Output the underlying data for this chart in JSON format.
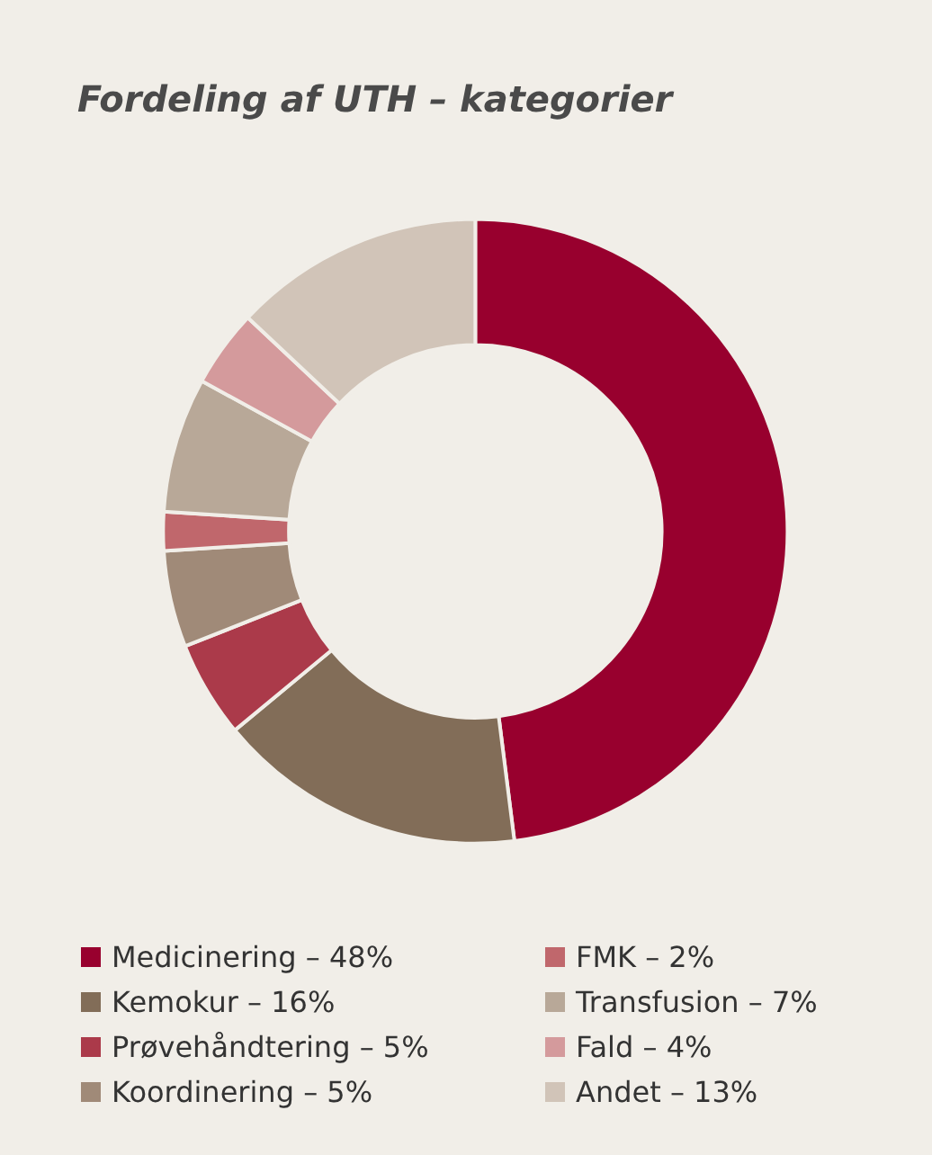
{
  "chart_data": {
    "type": "donut",
    "title": "Fordeling af UTH – kategorier",
    "categories": [
      "Medicinering – 48%",
      "Kemokur – 16%",
      "Prøvehåndtering – 5%",
      "Koordinering – 5%",
      "FMK – 2%",
      "Transfusion – 7%",
      "Fald – 4%",
      "Andet – 13%"
    ],
    "values": [
      48,
      16,
      5,
      5,
      2,
      7,
      4,
      13
    ],
    "colors": [
      "#98002e",
      "#826d58",
      "#ab3a4a",
      "#a08a78",
      "#c0676c",
      "#b8a898",
      "#d49a9c",
      "#d1c4b8"
    ],
    "legend": "bottom"
  }
}
